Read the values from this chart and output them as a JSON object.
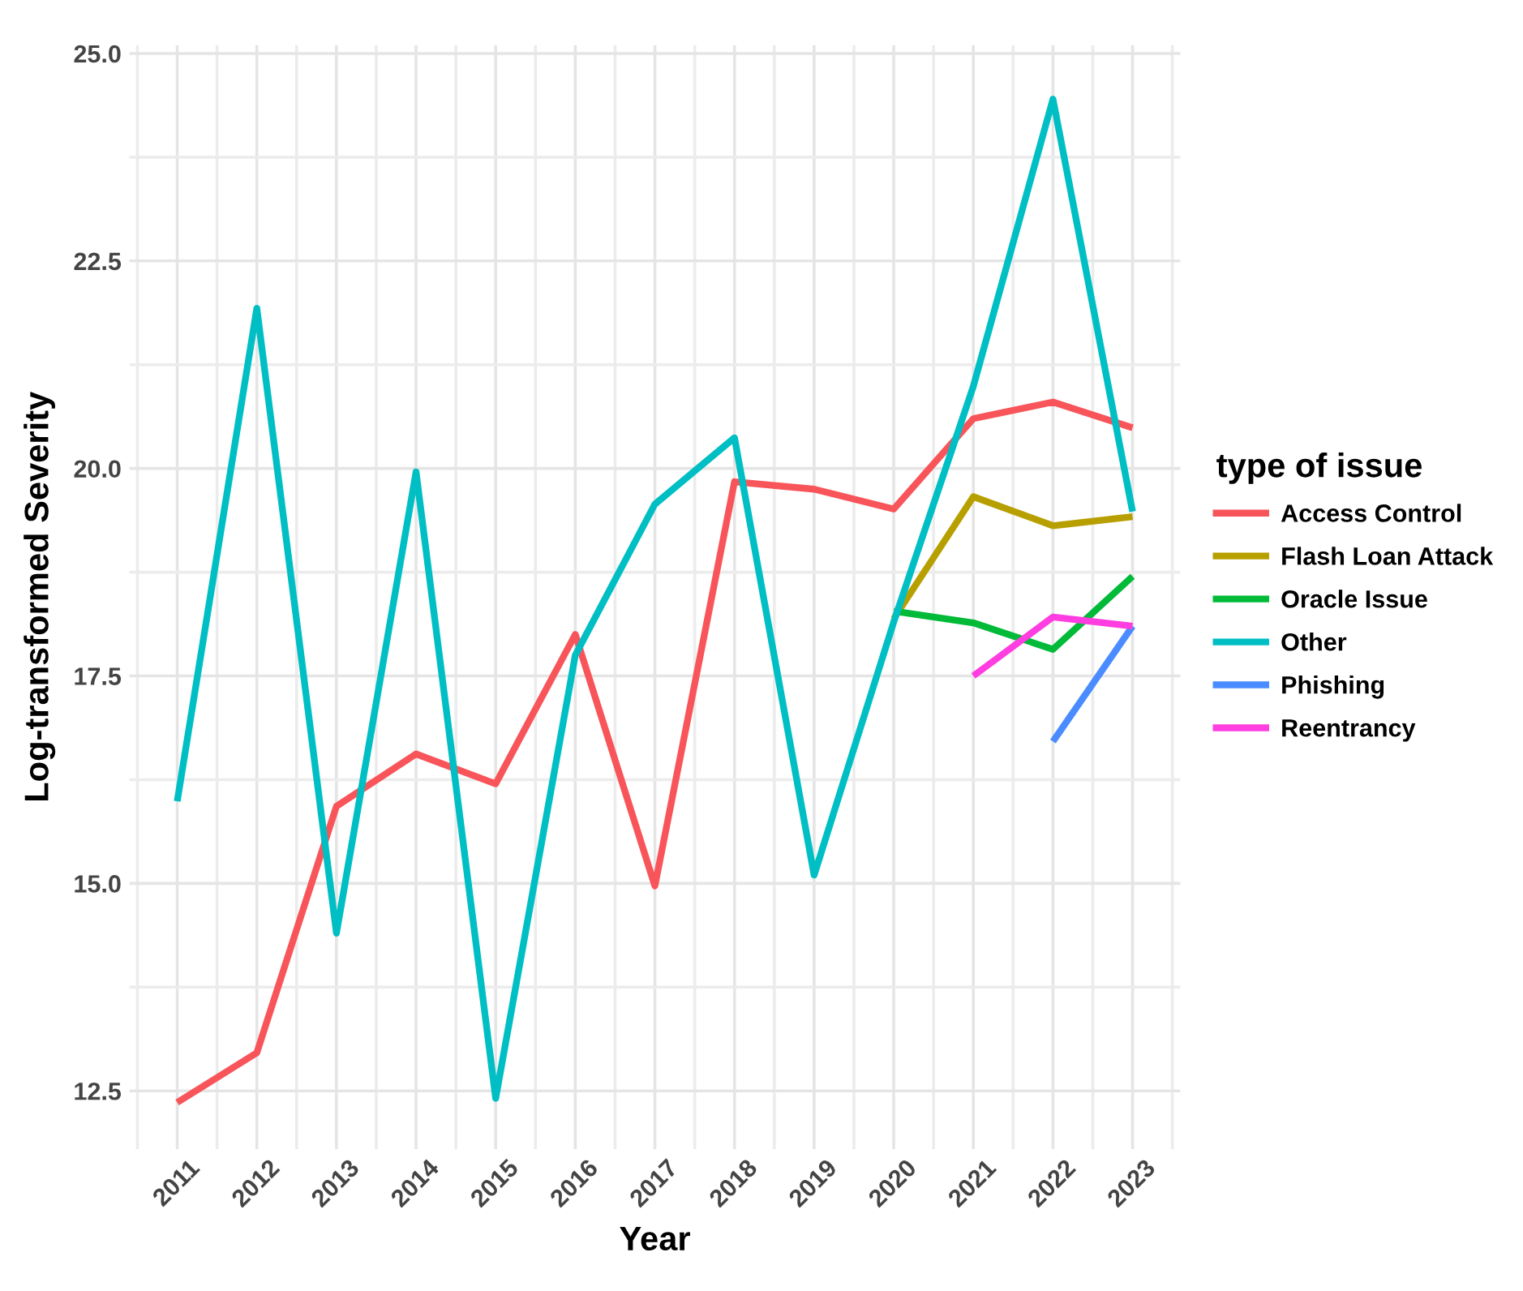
{
  "chart_data": {
    "type": "line",
    "xlabel": "Year",
    "ylabel": "Log-transformed Severity",
    "legend_title": "type of issue",
    "legend": "right",
    "grid": true,
    "x": [
      2011,
      2012,
      2013,
      2014,
      2015,
      2016,
      2017,
      2018,
      2019,
      2020,
      2021,
      2022,
      2023
    ],
    "xlim": [
      2010.4,
      2023.6
    ],
    "xticks": [
      2011,
      2012,
      2013,
      2014,
      2015,
      2016,
      2017,
      2018,
      2019,
      2020,
      2021,
      2022,
      2023
    ],
    "ylim": [
      11.8,
      25.1
    ],
    "yticks": [
      {
        "value": 12.5,
        "label": "12.5"
      },
      {
        "value": 15,
        "label": "15.0"
      },
      {
        "value": 17.5,
        "label": "17.5"
      },
      {
        "value": 20,
        "label": "20.0"
      },
      {
        "value": 22.5,
        "label": "22.5"
      },
      {
        "value": 25,
        "label": "25.0"
      }
    ],
    "series": [
      {
        "name": "Access Control",
        "color": "#f8555a",
        "values": [
          12.36,
          12.96,
          15.93,
          16.56,
          16.2,
          18.0,
          14.97,
          19.84,
          19.75,
          19.51,
          20.6,
          20.8,
          20.49
        ]
      },
      {
        "name": "Flash Loan Attack",
        "color": "#b79f00",
        "values": [
          null,
          null,
          null,
          null,
          null,
          null,
          null,
          null,
          null,
          18.19,
          19.66,
          19.31,
          19.42
        ]
      },
      {
        "name": "Oracle Issue",
        "color": "#00ba38",
        "values": [
          null,
          null,
          null,
          null,
          null,
          null,
          null,
          null,
          null,
          18.28,
          18.14,
          17.82,
          18.7
        ]
      },
      {
        "name": "Other",
        "color": "#00bfc4",
        "values": [
          15.99,
          21.93,
          14.4,
          19.96,
          12.41,
          17.75,
          19.57,
          20.37,
          15.1,
          18.15,
          20.99,
          24.45,
          19.48
        ]
      },
      {
        "name": "Phishing",
        "color": "#4a8cff",
        "values": [
          null,
          null,
          null,
          null,
          null,
          null,
          null,
          null,
          null,
          null,
          null,
          16.71,
          18.1
        ]
      },
      {
        "name": "Reentrancy",
        "color": "#ff3de0",
        "values": [
          null,
          null,
          null,
          null,
          null,
          null,
          null,
          null,
          null,
          null,
          17.5,
          18.21,
          18.1
        ]
      }
    ]
  }
}
